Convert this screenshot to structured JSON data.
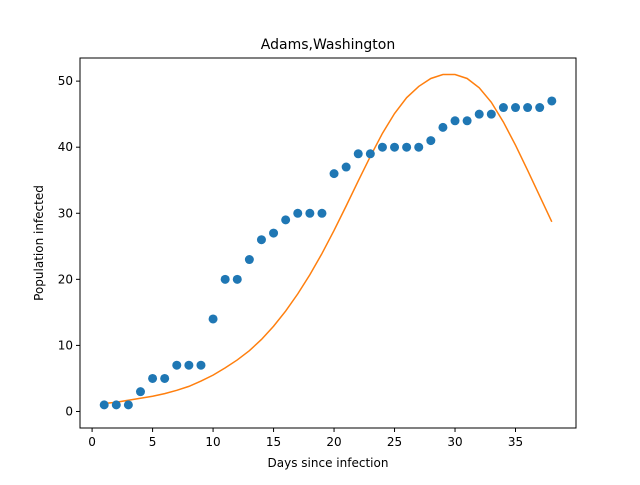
{
  "chart_data": {
    "type": "scatter",
    "title": "Adams,Washington",
    "xlabel": "Days since infection",
    "ylabel": "Population infected",
    "xlim": [
      -1,
      40
    ],
    "ylim": [
      -2.5,
      53.5
    ],
    "xticks": [
      0,
      5,
      10,
      15,
      20,
      25,
      30,
      35
    ],
    "yticks": [
      0,
      10,
      20,
      30,
      40,
      50
    ],
    "grid": false,
    "series": [
      {
        "kind": "scatter",
        "color": "#1f77b4",
        "x": [
          1,
          2,
          3,
          4,
          5,
          6,
          7,
          8,
          9,
          10,
          11,
          12,
          13,
          14,
          15,
          16,
          17,
          18,
          19,
          20,
          21,
          22,
          23,
          24,
          25,
          26,
          27,
          28,
          29,
          30,
          31,
          32,
          33,
          34,
          35,
          36,
          37,
          38
        ],
        "y": [
          1,
          1,
          1,
          3,
          5,
          5,
          7,
          7,
          7,
          14,
          20,
          20,
          23,
          26,
          27,
          29,
          30,
          30,
          30,
          36,
          37,
          39,
          39,
          40,
          40,
          40,
          40,
          41,
          43,
          44,
          44,
          45,
          45,
          46,
          46,
          46,
          46,
          47
        ]
      },
      {
        "kind": "line",
        "color": "#ff7f0e",
        "x": [
          1,
          2,
          3,
          4,
          5,
          6,
          7,
          8,
          9,
          10,
          11,
          12,
          13,
          14,
          15,
          16,
          17,
          18,
          19,
          20,
          21,
          22,
          23,
          24,
          25,
          26,
          27,
          28,
          29,
          30,
          31,
          32,
          33,
          34,
          35,
          36,
          37,
          38
        ],
        "y": [
          1.2,
          1.4,
          1.7,
          2.0,
          2.3,
          2.7,
          3.2,
          3.8,
          4.6,
          5.5,
          6.6,
          7.8,
          9.2,
          10.9,
          12.9,
          15.2,
          17.8,
          20.7,
          23.9,
          27.4,
          31.1,
          34.9,
          38.6,
          42.1,
          45.1,
          47.5,
          49.2,
          50.4,
          51.0,
          51.0,
          50.4,
          49.0,
          46.8,
          43.8,
          40.3,
          36.5,
          32.6,
          28.7
        ]
      }
    ]
  }
}
